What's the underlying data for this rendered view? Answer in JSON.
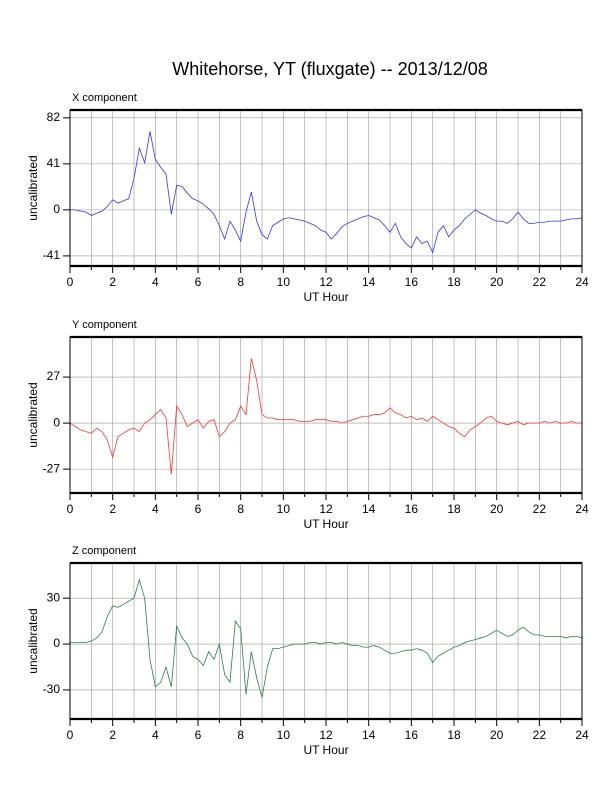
{
  "title": "Whitehorse, YT (fluxgate) -- 2013/12/08",
  "chart_data": [
    {
      "type": "line",
      "title": "X component",
      "xlabel": "UT Hour",
      "ylabel": "uncalibrated",
      "x": [
        0,
        0.25,
        0.5,
        0.75,
        1,
        1.25,
        1.5,
        1.75,
        2,
        2.25,
        2.5,
        2.75,
        3,
        3.25,
        3.5,
        3.75,
        4,
        4.25,
        4.5,
        4.75,
        5,
        5.25,
        5.5,
        5.75,
        6,
        6.25,
        6.5,
        6.75,
        7,
        7.25,
        7.5,
        7.75,
        8,
        8.25,
        8.5,
        8.75,
        9,
        9.25,
        9.5,
        9.75,
        10,
        10.25,
        10.5,
        10.75,
        11,
        11.25,
        11.5,
        11.75,
        12,
        12.25,
        12.5,
        12.75,
        13,
        13.25,
        13.5,
        13.75,
        14,
        14.25,
        14.5,
        14.75,
        15,
        15.25,
        15.5,
        15.75,
        16,
        16.25,
        16.5,
        16.75,
        17,
        17.25,
        17.5,
        17.75,
        18,
        18.25,
        18.5,
        18.75,
        19,
        19.25,
        19.5,
        19.75,
        20,
        20.25,
        20.5,
        20.75,
        21,
        21.25,
        21.5,
        21.75,
        22,
        22.25,
        22.5,
        22.75,
        23,
        23.25,
        23.5,
        23.75,
        24
      ],
      "xlim": [
        0,
        24
      ],
      "xticks": [
        0,
        2,
        4,
        6,
        8,
        10,
        12,
        14,
        16,
        18,
        20,
        22,
        24
      ],
      "xminorticks": [
        1,
        3,
        5,
        7,
        9,
        11,
        13,
        15,
        17,
        19,
        21,
        23
      ],
      "ylim": [
        -50,
        89
      ],
      "yticks": [
        -41,
        0,
        41,
        82
      ],
      "grid": true,
      "series": [
        {
          "color": "#3333ff",
          "values": [
            0,
            0,
            -1,
            -2,
            -5,
            -3,
            -1,
            3,
            9,
            6,
            8,
            10,
            28,
            55,
            42,
            70,
            45,
            38,
            32,
            -4,
            22,
            21,
            15,
            10,
            8,
            5,
            1,
            -4,
            -14,
            -26,
            -10,
            -18,
            -28,
            -2,
            16,
            -10,
            -22,
            -26,
            -14,
            -11,
            -8,
            -7,
            -8,
            -9,
            -10,
            -12,
            -14,
            -18,
            -20,
            -26,
            -21,
            -15,
            -12,
            -10,
            -8,
            -6,
            -5,
            -7,
            -9,
            -14,
            -20,
            -12,
            -24,
            -30,
            -34,
            -24,
            -30,
            -28,
            -38,
            -20,
            -14,
            -24,
            -18,
            -14,
            -8,
            -4,
            0,
            -3,
            -5,
            -8,
            -10,
            -10,
            -12,
            -8,
            -2,
            -8,
            -12,
            -12,
            -11,
            -11,
            -10,
            -10,
            -10,
            -9,
            -8,
            -8,
            -7
          ]
        }
      ]
    },
    {
      "type": "line",
      "title": "Y component",
      "xlabel": "UT Hour",
      "ylabel": "uncalibrated",
      "x": [
        0,
        0.25,
        0.5,
        0.75,
        1,
        1.25,
        1.5,
        1.75,
        2,
        2.25,
        2.5,
        2.75,
        3,
        3.25,
        3.5,
        3.75,
        4,
        4.25,
        4.5,
        4.75,
        5,
        5.25,
        5.5,
        5.75,
        6,
        6.25,
        6.5,
        6.75,
        7,
        7.25,
        7.5,
        7.75,
        8,
        8.25,
        8.5,
        8.75,
        9,
        9.25,
        9.5,
        9.75,
        10,
        10.25,
        10.5,
        10.75,
        11,
        11.25,
        11.5,
        11.75,
        12,
        12.25,
        12.5,
        12.75,
        13,
        13.25,
        13.5,
        13.75,
        14,
        14.25,
        14.5,
        14.75,
        15,
        15.25,
        15.5,
        15.75,
        16,
        16.25,
        16.5,
        16.75,
        17,
        17.25,
        17.5,
        17.75,
        18,
        18.25,
        18.5,
        18.75,
        19,
        19.25,
        19.5,
        19.75,
        20,
        20.25,
        20.5,
        20.75,
        21,
        21.25,
        21.5,
        21.75,
        22,
        22.25,
        22.5,
        22.75,
        23,
        23.25,
        23.5,
        23.75,
        24
      ],
      "xlim": [
        0,
        24
      ],
      "xticks": [
        0,
        2,
        4,
        6,
        8,
        10,
        12,
        14,
        16,
        18,
        20,
        22,
        24
      ],
      "xminorticks": [
        1,
        3,
        5,
        7,
        9,
        11,
        13,
        15,
        17,
        19,
        21,
        23
      ],
      "ylim": [
        -41,
        50.5
      ],
      "yticks": [
        -27,
        0,
        27
      ],
      "grid": true,
      "series": [
        {
          "color": "#ff3333",
          "values": [
            0,
            -2,
            -4,
            -5,
            -6,
            -3,
            -5,
            -10,
            -20,
            -8,
            -6,
            -4,
            -3,
            -5,
            0,
            2,
            5,
            8,
            3,
            -30,
            10,
            5,
            -2,
            0,
            2,
            -3,
            1,
            2,
            -8,
            -5,
            0,
            2,
            10,
            5,
            38,
            25,
            5,
            3,
            3,
            2,
            2,
            2,
            2,
            1,
            1,
            1,
            2,
            2,
            2,
            1,
            1,
            0,
            1,
            2,
            3,
            4,
            4,
            5,
            5,
            6,
            9,
            6,
            5,
            3,
            4,
            2,
            3,
            1,
            4,
            2,
            0,
            -2,
            -3,
            -6,
            -8,
            -4,
            -2,
            0,
            3,
            4,
            1,
            0,
            -1,
            0,
            1,
            -1,
            0,
            0,
            0,
            1,
            0,
            1,
            0,
            0,
            1,
            0,
            0
          ]
        }
      ]
    },
    {
      "type": "line",
      "title": "Z component",
      "xlabel": "UT Hour",
      "ylabel": "uncalibrated",
      "x": [
        0,
        0.25,
        0.5,
        0.75,
        1,
        1.25,
        1.5,
        1.75,
        2,
        2.25,
        2.5,
        2.75,
        3,
        3.25,
        3.5,
        3.75,
        4,
        4.25,
        4.5,
        4.75,
        5,
        5.25,
        5.5,
        5.75,
        6,
        6.25,
        6.5,
        6.75,
        7,
        7.25,
        7.5,
        7.75,
        8,
        8.25,
        8.5,
        8.75,
        9,
        9.25,
        9.5,
        9.75,
        10,
        10.25,
        10.5,
        10.75,
        11,
        11.25,
        11.5,
        11.75,
        12,
        12.25,
        12.5,
        12.75,
        13,
        13.25,
        13.5,
        13.75,
        14,
        14.25,
        14.5,
        14.75,
        15,
        15.25,
        15.5,
        15.75,
        16,
        16.25,
        16.5,
        16.75,
        17,
        17.25,
        17.5,
        17.75,
        18,
        18.25,
        18.5,
        18.75,
        19,
        19.25,
        19.5,
        19.75,
        20,
        20.25,
        20.5,
        20.75,
        21,
        21.25,
        21.5,
        21.75,
        22,
        22.25,
        22.5,
        22.75,
        23,
        23.25,
        23.5,
        23.75,
        24
      ],
      "xlim": [
        0,
        24
      ],
      "xticks": [
        0,
        2,
        4,
        6,
        8,
        10,
        12,
        14,
        16,
        18,
        20,
        22,
        24
      ],
      "xminorticks": [
        1,
        3,
        5,
        7,
        9,
        11,
        13,
        15,
        17,
        19,
        21,
        23
      ],
      "ylim": [
        -49,
        53
      ],
      "yticks": [
        -30,
        0,
        30
      ],
      "grid": true,
      "series": [
        {
          "color": "#2e7d4f",
          "values": [
            1,
            1,
            1,
            1,
            2,
            4,
            8,
            18,
            25,
            24,
            26,
            28,
            30,
            42,
            30,
            -10,
            -28,
            -25,
            -15,
            -28,
            12,
            4,
            0,
            -8,
            -10,
            -14,
            -5,
            -10,
            0,
            -20,
            -25,
            15,
            10,
            -33,
            -5,
            -22,
            -35,
            -15,
            -3,
            -3,
            -2,
            -1,
            0,
            0,
            0,
            1,
            1,
            0,
            1,
            1,
            0,
            1,
            0,
            -1,
            -1,
            -2,
            -2,
            -1,
            -2,
            -4,
            -6,
            -6,
            -5,
            -4,
            -4,
            -3,
            -4,
            -6,
            -12,
            -8,
            -6,
            -4,
            -2,
            -1,
            1,
            2,
            3,
            4,
            5,
            7,
            9,
            7,
            5,
            6,
            9,
            11,
            8,
            6,
            6,
            5,
            5,
            5,
            5,
            4,
            5,
            5,
            4
          ]
        }
      ]
    }
  ]
}
